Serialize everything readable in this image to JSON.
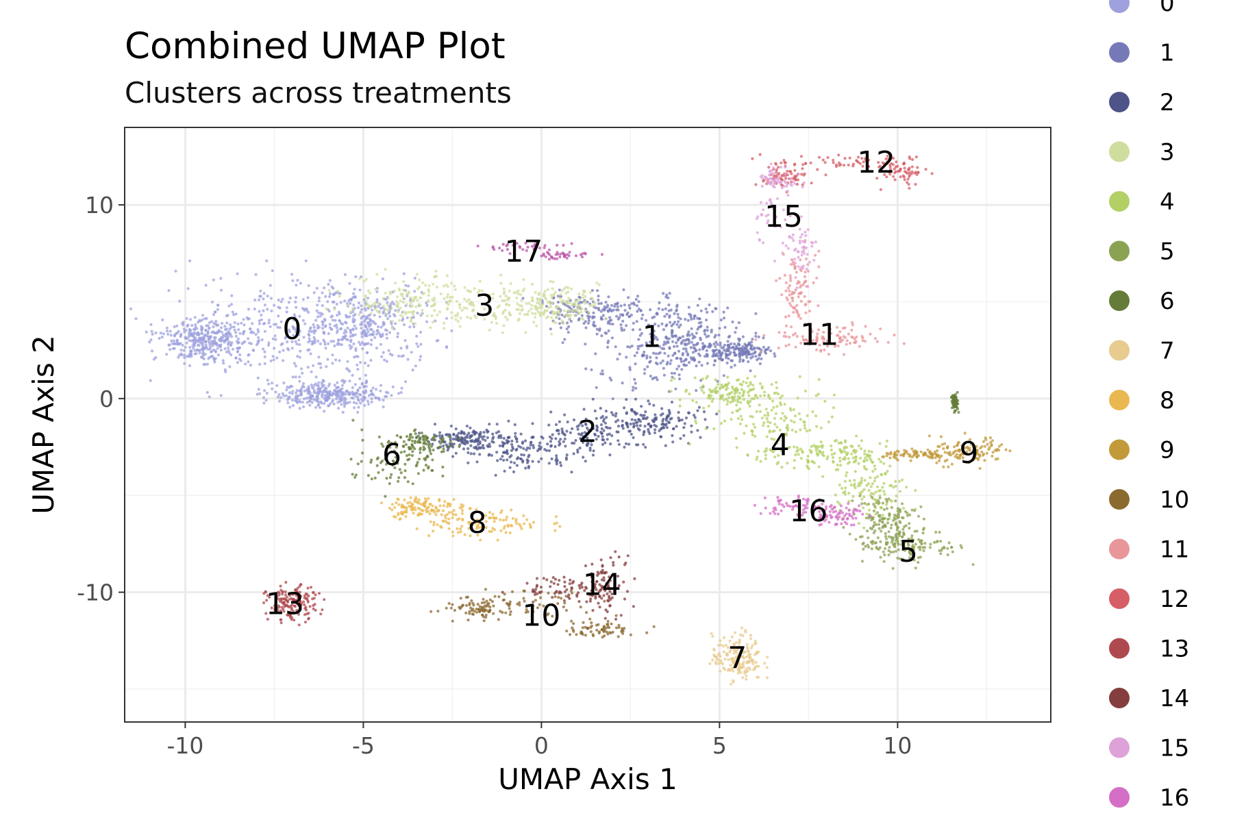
{
  "chart_data": {
    "type": "scatter",
    "title": "Combined UMAP Plot",
    "subtitle": "Clusters across treatments",
    "xlabel": "UMAP Axis 1",
    "ylabel": "UMAP Axis 2",
    "xlim": [
      -11.7,
      14.3
    ],
    "ylim": [
      -16.7,
      14.0
    ],
    "x_ticks": [
      -10,
      -5,
      0,
      5,
      10
    ],
    "x_tick_labels": [
      "-10",
      "-5",
      "0",
      "5",
      "10"
    ],
    "y_ticks": [
      -10,
      0,
      10
    ],
    "y_tick_labels": [
      "-10",
      "0",
      "10"
    ],
    "grid": true,
    "legend_position": "right",
    "clusters": [
      {
        "name": "0",
        "color": "#9EA1DD",
        "label_xy": [
          -7.0,
          3.6
        ],
        "n": 1300,
        "blobs": [
          {
            "cx": -7.2,
            "cy": 3.6,
            "sx": 1.8,
            "sy": 1.35
          },
          {
            "cx": -5.0,
            "cy": 3.8,
            "sx": 0.9,
            "sy": 1.0
          },
          {
            "cx": -9.4,
            "cy": 3.0,
            "sx": 0.6,
            "sy": 0.5
          },
          {
            "cx": -6.0,
            "cy": 0.2,
            "sx": 0.8,
            "sy": 0.35
          }
        ]
      },
      {
        "name": "1",
        "color": "#7679B7",
        "label_xy": [
          3.1,
          3.2
        ],
        "n": 700,
        "blobs": [
          {
            "cx": 3.2,
            "cy": 2.6,
            "sx": 1.0,
            "sy": 1.1
          },
          {
            "cx": 1.5,
            "cy": 4.5,
            "sx": 0.9,
            "sy": 0.45
          },
          {
            "cx": 4.2,
            "cy": 3.3,
            "sx": 0.7,
            "sy": 0.9
          },
          {
            "cx": 5.5,
            "cy": 2.4,
            "sx": 0.5,
            "sy": 0.3
          }
        ]
      },
      {
        "name": "2",
        "color": "#4E5488",
        "label_xy": [
          1.3,
          -1.7
        ],
        "n": 550,
        "blobs": [
          {
            "cx": 1.4,
            "cy": -1.8,
            "sx": 1.0,
            "sy": 0.55
          },
          {
            "cx": 3.1,
            "cy": -1.2,
            "sx": 0.7,
            "sy": 0.45
          },
          {
            "cx": -0.6,
            "cy": -2.7,
            "sx": 0.8,
            "sy": 0.6
          },
          {
            "cx": -2.2,
            "cy": -2.1,
            "sx": 0.5,
            "sy": 0.3
          }
        ]
      },
      {
        "name": "3",
        "color": "#CFDD9E",
        "label_xy": [
          -1.6,
          4.8
        ],
        "n": 420,
        "blobs": [
          {
            "cx": -1.6,
            "cy": 4.8,
            "sx": 1.2,
            "sy": 0.65
          },
          {
            "cx": -3.7,
            "cy": 5.1,
            "sx": 0.9,
            "sy": 0.7
          },
          {
            "cx": 0.4,
            "cy": 4.9,
            "sx": 0.6,
            "sy": 0.45
          }
        ]
      },
      {
        "name": "4",
        "color": "#B3D066",
        "label_xy": [
          6.7,
          -2.4
        ],
        "n": 520,
        "blobs": [
          {
            "cx": 6.5,
            "cy": -1.0,
            "sx": 0.9,
            "sy": 0.9
          },
          {
            "cx": 7.9,
            "cy": -2.9,
            "sx": 0.9,
            "sy": 0.35
          },
          {
            "cx": 5.2,
            "cy": 0.3,
            "sx": 0.6,
            "sy": 0.4
          },
          {
            "cx": 9.2,
            "cy": -4.5,
            "sx": 0.5,
            "sy": 0.9
          }
        ]
      },
      {
        "name": "5",
        "color": "#8CA253",
        "label_xy": [
          10.3,
          -7.9
        ],
        "n": 260,
        "blobs": [
          {
            "cx": 10.3,
            "cy": -7.6,
            "sx": 0.7,
            "sy": 0.45
          },
          {
            "cx": 9.7,
            "cy": -6.2,
            "sx": 0.4,
            "sy": 0.6
          }
        ]
      },
      {
        "name": "6",
        "color": "#647C38",
        "label_xy": [
          -4.2,
          -2.9
        ],
        "n": 260,
        "blobs": [
          {
            "cx": -4.2,
            "cy": -3.2,
            "sx": 0.55,
            "sy": 0.8
          },
          {
            "cx": -3.3,
            "cy": -2.3,
            "sx": 0.4,
            "sy": 0.3
          },
          {
            "cx": 11.6,
            "cy": -0.2,
            "sx": 0.05,
            "sy": 0.2
          }
        ]
      },
      {
        "name": "7",
        "color": "#E8CB8E",
        "label_xy": [
          5.5,
          -13.4
        ],
        "n": 170,
        "blobs": [
          {
            "cx": 5.5,
            "cy": -13.4,
            "sx": 0.35,
            "sy": 0.6
          }
        ]
      },
      {
        "name": "8",
        "color": "#EAB850",
        "label_xy": [
          -1.8,
          -6.4
        ],
        "n": 230,
        "blobs": [
          {
            "cx": -1.8,
            "cy": -6.4,
            "sx": 0.9,
            "sy": 0.35
          },
          {
            "cx": -3.3,
            "cy": -5.6,
            "sx": 0.5,
            "sy": 0.3
          }
        ]
      },
      {
        "name": "9",
        "color": "#C29A3A",
        "label_xy": [
          12.0,
          -2.8
        ],
        "n": 190,
        "blobs": [
          {
            "cx": 12.1,
            "cy": -2.7,
            "sx": 0.6,
            "sy": 0.35
          },
          {
            "cx": 10.8,
            "cy": -2.9,
            "sx": 0.6,
            "sy": 0.12
          }
        ]
      },
      {
        "name": "10",
        "color": "#8B6A30",
        "label_xy": [
          0.0,
          -11.2
        ],
        "n": 200,
        "blobs": [
          {
            "cx": -0.5,
            "cy": -10.6,
            "sx": 1.0,
            "sy": 0.35
          },
          {
            "cx": 1.6,
            "cy": -11.9,
            "sx": 0.6,
            "sy": 0.2
          },
          {
            "cx": -1.9,
            "cy": -10.9,
            "sx": 0.4,
            "sy": 0.25
          }
        ]
      },
      {
        "name": "11",
        "color": "#E8969A",
        "label_xy": [
          7.8,
          3.3
        ],
        "n": 190,
        "blobs": [
          {
            "cx": 8.1,
            "cy": 3.1,
            "sx": 0.8,
            "sy": 0.35
          },
          {
            "cx": 7.2,
            "cy": 5.3,
            "sx": 0.25,
            "sy": 1.1
          }
        ]
      },
      {
        "name": "12",
        "color": "#D65E66",
        "label_xy": [
          9.4,
          12.2
        ],
        "n": 180,
        "blobs": [
          {
            "cx": 8.4,
            "cy": 12.2,
            "sx": 1.0,
            "sy": 0.25
          },
          {
            "cx": 10.2,
            "cy": 11.7,
            "sx": 0.3,
            "sy": 0.35
          },
          {
            "cx": 6.8,
            "cy": 11.4,
            "sx": 0.3,
            "sy": 0.3
          }
        ]
      },
      {
        "name": "13",
        "color": "#AE4A4F",
        "label_xy": [
          -7.2,
          -10.6
        ],
        "n": 160,
        "blobs": [
          {
            "cx": -7.0,
            "cy": -10.6,
            "sx": 0.35,
            "sy": 0.45
          }
        ]
      },
      {
        "name": "14",
        "color": "#843E3D",
        "label_xy": [
          1.7,
          -9.6
        ],
        "n": 160,
        "blobs": [
          {
            "cx": 1.9,
            "cy": -9.6,
            "sx": 0.3,
            "sy": 0.8
          },
          {
            "cx": 0.7,
            "cy": -9.8,
            "sx": 0.7,
            "sy": 0.3
          }
        ]
      },
      {
        "name": "15",
        "color": "#DEA1D8",
        "label_xy": [
          6.8,
          9.4
        ],
        "n": 140,
        "blobs": [
          {
            "cx": 6.5,
            "cy": 9.7,
            "sx": 0.25,
            "sy": 1.0
          },
          {
            "cx": 7.3,
            "cy": 7.8,
            "sx": 0.2,
            "sy": 0.8
          },
          {
            "cx": 6.7,
            "cy": 11.4,
            "sx": 0.3,
            "sy": 0.3
          }
        ]
      },
      {
        "name": "16",
        "color": "#D46EC6",
        "label_xy": [
          7.5,
          -5.8
        ],
        "n": 130,
        "blobs": [
          {
            "cx": 7.2,
            "cy": -5.6,
            "sx": 0.5,
            "sy": 0.3
          },
          {
            "cx": 8.3,
            "cy": -6.0,
            "sx": 0.4,
            "sy": 0.3
          }
        ]
      },
      {
        "name": "17",
        "color": "#BA56A9",
        "label_xy": [
          -0.5,
          7.6
        ],
        "n": 70,
        "blobs": [
          {
            "cx": -0.6,
            "cy": 7.8,
            "sx": 0.6,
            "sy": 0.15
          },
          {
            "cx": 0.6,
            "cy": 7.4,
            "sx": 0.5,
            "sy": 0.1
          }
        ]
      }
    ]
  }
}
